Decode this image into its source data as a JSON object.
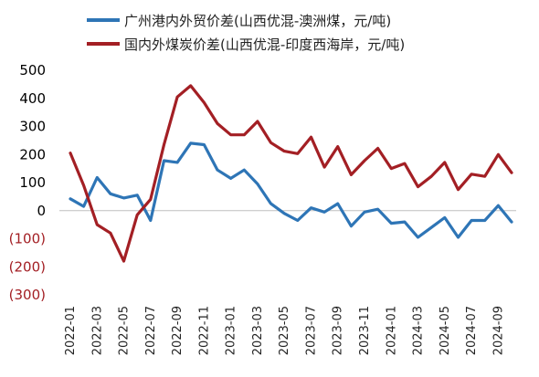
{
  "chart_data": {
    "type": "line",
    "x": [
      "2022-01",
      "2022-02",
      "2022-03",
      "2022-04",
      "2022-05",
      "2022-06",
      "2022-07",
      "2022-08",
      "2022-09",
      "2022-10",
      "2022-11",
      "2022-12",
      "2023-01",
      "2023-02",
      "2023-03",
      "2023-04",
      "2023-05",
      "2023-06",
      "2023-07",
      "2023-08",
      "2023-09",
      "2023-10",
      "2023-11",
      "2023-12",
      "2024-01",
      "2024-02",
      "2024-03",
      "2024-04",
      "2024-05",
      "2024-06",
      "2024-07",
      "2024-08",
      "2024-09",
      "2024-10"
    ],
    "x_tick_labels": [
      "2022-01",
      "2022-03",
      "2022-05",
      "2022-07",
      "2022-09",
      "2022-11",
      "2023-01",
      "2023-03",
      "2023-05",
      "2023-07",
      "2023-09",
      "2023-11",
      "2024-01",
      "2024-03",
      "2024-05",
      "2024-07",
      "2024-09"
    ],
    "series": [
      {
        "name": "广州港内外贸价差(山西优混-澳洲煤，元/吨)",
        "color": "#2e75b6",
        "values": [
          42,
          15,
          118,
          60,
          45,
          55,
          -35,
          178,
          172,
          240,
          235,
          145,
          115,
          145,
          95,
          25,
          -10,
          -35,
          10,
          -5,
          25,
          -55,
          -5,
          5,
          -45,
          -40,
          -95,
          -60,
          -25,
          -95,
          -35,
          -35,
          18,
          -40
        ]
      },
      {
        "name": "国内外煤炭价差(山西优混-印度西海岸，元/吨)",
        "color": "#a31f24",
        "values": [
          205,
          90,
          -50,
          -80,
          -180,
          -15,
          40,
          235,
          405,
          445,
          385,
          310,
          270,
          270,
          318,
          242,
          212,
          203,
          262,
          155,
          228,
          128,
          178,
          222,
          150,
          168,
          85,
          122,
          172,
          75,
          130,
          122,
          200,
          135
        ]
      }
    ],
    "y_ticks": [
      500,
      400,
      300,
      200,
      100,
      0,
      -100,
      -200,
      -300
    ],
    "y_tick_labels": [
      "500",
      "400",
      "300",
      "200",
      "100",
      "0",
      "(100)",
      "(200)",
      "(300)"
    ],
    "ylim": [
      -300,
      500
    ],
    "legend_position": "top-left",
    "grid": false,
    "colors": {
      "positive_tick": "#000000",
      "negative_tick": "#a31f24",
      "zero_line": "#bfbfbf"
    }
  }
}
